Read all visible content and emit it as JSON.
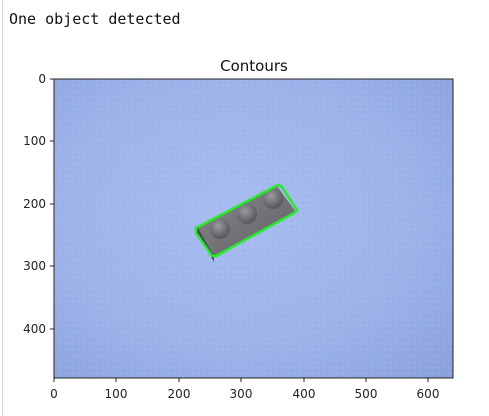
{
  "output": {
    "message": "One object detected"
  },
  "figure": {
    "title": "Contours",
    "contour_color": "#22ee22",
    "background_color": "#9fb6ea",
    "x_ticks": [
      "0",
      "100",
      "200",
      "300",
      "400",
      "500",
      "600"
    ],
    "y_ticks": [
      "0",
      "100",
      "200",
      "300",
      "400"
    ],
    "x_range": [
      0,
      640
    ],
    "y_range": [
      0,
      480
    ]
  }
}
